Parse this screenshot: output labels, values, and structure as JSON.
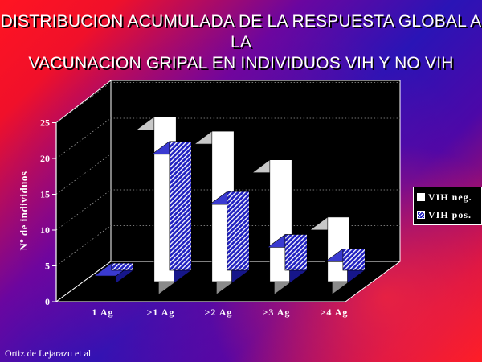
{
  "title_lines": [
    "DISTRIBUCION ACUMULADA DE LA RESPUESTA GLOBAL A LA",
    "VACUNACION GRIPAL EN INDIVIDUOS VIH Y NO VIH"
  ],
  "credit": "Ortiz de Lejarazu et al",
  "colors": {
    "neg_face": "#ffffff",
    "neg_side": "#8a8a8a",
    "neg_top": "#c8c8c8",
    "pos_base": "#2020c0",
    "pos_hatch": "#ffffff",
    "pos_side": "#16168a",
    "pos_top": "#3a3ad0",
    "plot_bg": "#000000"
  },
  "chart_data": {
    "type": "bar",
    "style": "3d-clustered",
    "title": "DISTRIBUCION ACUMULADA DE LA RESPUESTA GLOBAL A LA VACUNACION GRIPAL EN INDIVIDUOS VIH Y NO VIH",
    "xlabel": "",
    "ylabel": "Nº de individuos",
    "ylim": [
      0,
      25
    ],
    "yticks": [
      0,
      5,
      10,
      15,
      20,
      25
    ],
    "grid": true,
    "legend": "right",
    "categories": [
      "1 Ag",
      ">1 Ag",
      ">2 Ag",
      ">3 Ag",
      ">4 Ag"
    ],
    "series": [
      {
        "name": "VIH neg.",
        "values": [
          0,
          23,
          21,
          17,
          9
        ]
      },
      {
        "name": "VIH pos.",
        "values": [
          1,
          18,
          11,
          5,
          3
        ]
      }
    ]
  }
}
